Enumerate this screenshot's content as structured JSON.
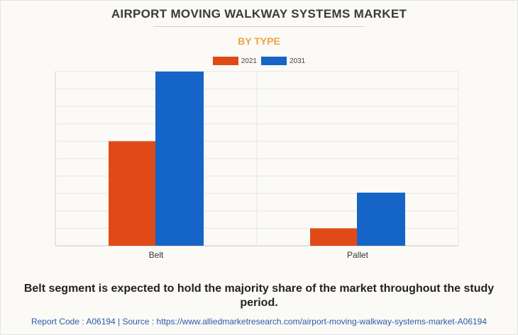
{
  "header": {
    "title": "AIRPORT MOVING WALKWAY SYSTEMS MARKET",
    "subtitle": "BY TYPE",
    "subtitle_color": "#f2a33a"
  },
  "chart_data": {
    "type": "bar",
    "categories": [
      "Belt",
      "Pallet"
    ],
    "series": [
      {
        "name": "2021",
        "color": "#e04a17",
        "values": [
          6.0,
          1.0
        ]
      },
      {
        "name": "2031",
        "color": "#1565c8",
        "values": [
          10.0,
          3.05
        ]
      }
    ],
    "ylim": [
      0,
      10
    ],
    "grid": true,
    "legend": "top-center"
  },
  "footnote": {
    "summary": "Belt segment is expected to hold the majority share of the market throughout the study period.",
    "source_line": "Report Code : A06194  |  Source : https://www.alliedmarketresearch.com/airport-moving-walkway-systems-market-A06194"
  }
}
